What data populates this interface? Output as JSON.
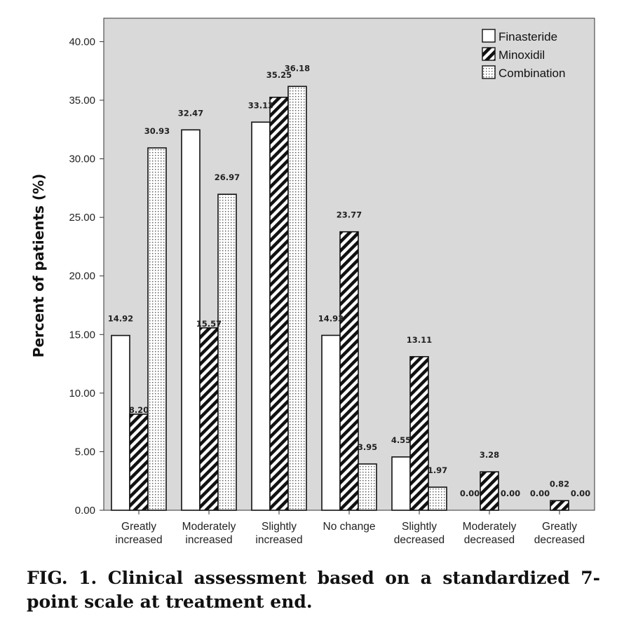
{
  "chart_data": {
    "type": "bar",
    "ylabel": "Percent of patients (%)",
    "xlabel": "",
    "ylim": [
      0,
      42
    ],
    "yticks": [
      0,
      5,
      10,
      15,
      20,
      25,
      30,
      35,
      40
    ],
    "ytick_labels": [
      "0.00",
      "5.00",
      "10.00",
      "15.00",
      "20.00",
      "25.00",
      "30.00",
      "35.00",
      "40.00"
    ],
    "categories": [
      [
        "Greatly",
        "increased"
      ],
      [
        "Moderately",
        "increased"
      ],
      [
        "Slightly",
        "increased"
      ],
      [
        "No change"
      ],
      [
        "Slightly",
        "decreased"
      ],
      [
        "Moderately",
        "decreased"
      ],
      [
        "Greatly",
        "decreased"
      ]
    ],
    "series": [
      {
        "name": "Finasteride",
        "pattern": "plain",
        "values": [
          14.92,
          32.47,
          33.13,
          14.93,
          4.55,
          0.0,
          0.0
        ],
        "labels": [
          "14.92",
          "32.47",
          "33.13",
          "14.93",
          "4.55",
          "0.00",
          "0.00"
        ]
      },
      {
        "name": "Minoxidil",
        "pattern": "diagonal-hatch",
        "values": [
          8.2,
          15.57,
          35.25,
          23.77,
          13.11,
          3.28,
          0.82
        ],
        "labels": [
          "8.20",
          "15.57",
          "35.25",
          "23.77",
          "13.11",
          "3.28",
          "0.82"
        ]
      },
      {
        "name": "Combination",
        "pattern": "dotted",
        "values": [
          30.93,
          26.97,
          36.18,
          3.95,
          1.97,
          0.0,
          0.0
        ],
        "labels": [
          "30.93",
          "26.97",
          "36.18",
          "3.95",
          "1.97",
          "0.00",
          "0.00"
        ]
      }
    ],
    "grid": false,
    "legend_position": "top-right",
    "colors": {
      "plot_background": "#d9d9d9",
      "bar_fill": "#ffffff",
      "bar_stroke": "#111111",
      "hatch": "#111111"
    }
  },
  "caption": {
    "text": "FIG. 1. Clinical assessment based on a standardized 7-point scale at treatment end."
  }
}
